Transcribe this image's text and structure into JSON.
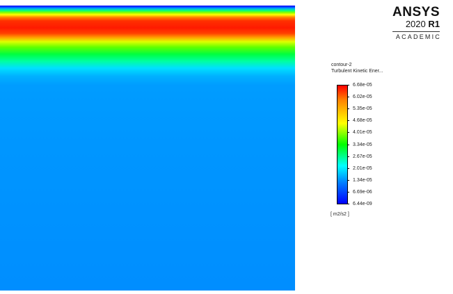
{
  "logo": {
    "brand": "ANSYS",
    "version": "2020",
    "release": "R1",
    "edition": "ACADEMIC"
  },
  "legend": {
    "contour_name": "contour-2",
    "variable": "Turbulent Kinetic Ener...",
    "unit": "[ m2/s2 ]",
    "ticks": [
      "6.68e-05",
      "6.02e-05",
      "5.35e-05",
      "4.68e-05",
      "4.01e-05",
      "3.34e-05",
      "2.67e-05",
      "2.01e-05",
      "1.34e-05",
      "6.69e-06",
      "6.44e-09"
    ],
    "colormap_top": "#ff0000",
    "colormap_bottom": "#0000ff"
  },
  "plot": {
    "field_color_dominant": "#0096ff",
    "field_color_max": "#ff1a00"
  }
}
